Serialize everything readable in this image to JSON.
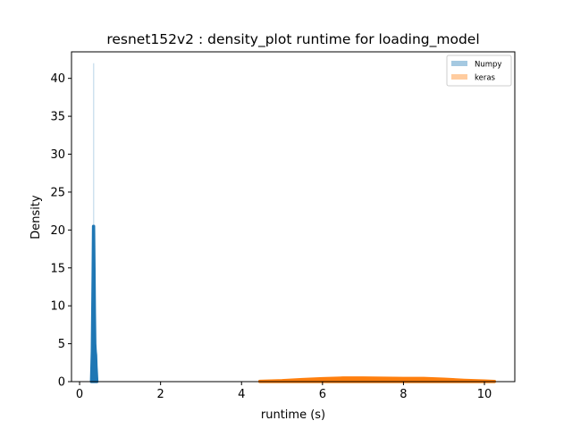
{
  "chart_data": {
    "type": "area",
    "title": "resnet152v2 : density_plot runtime  for loading_model",
    "xlabel": "runtime (s)",
    "ylabel": "Density",
    "xlim": [
      -0.2,
      10.75
    ],
    "ylim": [
      0,
      43.5
    ],
    "xticks": [
      0,
      2,
      4,
      6,
      8,
      10
    ],
    "yticks": [
      0,
      5,
      10,
      15,
      20,
      25,
      30,
      35,
      40
    ],
    "grid": false,
    "legend_position": "top-right",
    "series": [
      {
        "name": "Numpy",
        "color": "#1f77b4",
        "histogram": {
          "bin_edges": [
            0.34,
            0.35
          ],
          "density": [
            42
          ]
        },
        "kde": {
          "x": [
            0.29,
            0.31,
            0.33,
            0.34,
            0.35,
            0.36,
            0.37,
            0.38,
            0.39,
            0.4,
            0.41,
            0.43
          ],
          "y": [
            0,
            4,
            14,
            20.5,
            20.5,
            15,
            9,
            5,
            4,
            3.5,
            2,
            0
          ]
        }
      },
      {
        "name": "keras",
        "color": "#ff7f0e",
        "histogram": {
          "bin_edges": [
            4.45,
            10.25
          ],
          "density": [
            0.1
          ]
        },
        "kde": {
          "x": [
            4.45,
            5.0,
            5.5,
            6.0,
            6.5,
            7.0,
            7.5,
            8.0,
            8.5,
            9.0,
            9.5,
            10.0,
            10.25
          ],
          "y": [
            0.06,
            0.15,
            0.3,
            0.42,
            0.5,
            0.5,
            0.47,
            0.45,
            0.44,
            0.34,
            0.2,
            0.1,
            0.05
          ]
        }
      }
    ]
  }
}
